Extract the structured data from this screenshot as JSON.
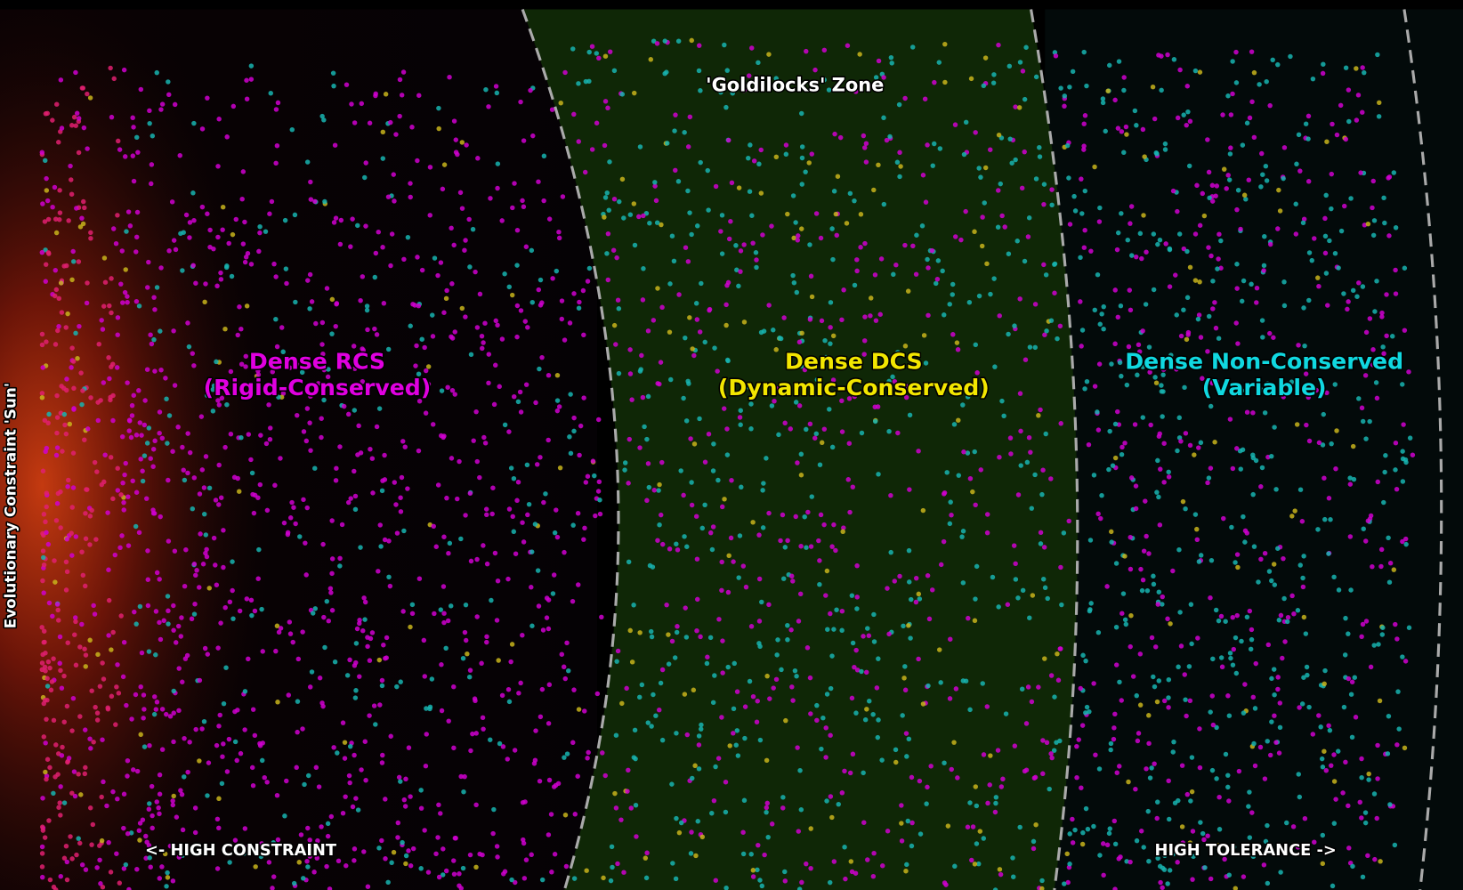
{
  "zone_label": "'Goldilocks' Zone",
  "regions": [
    {
      "title": "Dense RCS",
      "subtitle": "(Rigid-Conserved)"
    },
    {
      "title": "Dense DCS",
      "subtitle": "(Dynamic-Conserved)"
    },
    {
      "title": "Dense Non-Conserved",
      "subtitle": "(Variable)"
    }
  ],
  "left_arrow": "<- HIGH CONSTRAINT",
  "right_arrow": "HIGH TOLERANCE ->",
  "sun_label": "Evolutionary Constraint 'Sun'"
}
